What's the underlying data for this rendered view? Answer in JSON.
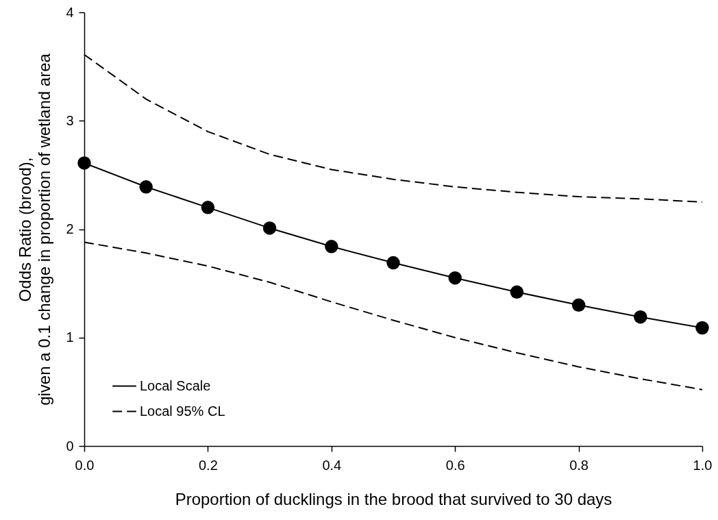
{
  "chart_data": {
    "type": "line",
    "xlabel": "Proportion of ducklings in the brood that survived to 30 days",
    "ylabel": "Odds Ratio (brood),\ngiven a 0.1 change in proportion of wetland area",
    "x": [
      0.0,
      0.1,
      0.2,
      0.3,
      0.4,
      0.5,
      0.6,
      0.7,
      0.8,
      0.9,
      1.0
    ],
    "series": [
      {
        "name": "Local Scale",
        "color": "#000000",
        "marker": "circle",
        "line_style": "solid",
        "values": [
          2.61,
          2.39,
          2.2,
          2.01,
          1.84,
          1.69,
          1.55,
          1.42,
          1.3,
          1.19,
          1.09
        ]
      },
      {
        "name": "Local 95% CL",
        "color": "#000000",
        "marker": "none",
        "line_style": "dashed",
        "values": [
          3.61,
          3.2,
          2.9,
          2.69,
          2.55,
          2.46,
          2.39,
          2.34,
          2.3,
          2.28,
          2.25
        ]
      },
      {
        "color": "#000000",
        "marker": "none",
        "line_style": "dashed",
        "values": [
          1.88,
          1.78,
          1.66,
          1.51,
          1.33,
          1.16,
          1.0,
          0.86,
          0.73,
          0.62,
          0.52
        ]
      }
    ],
    "xlim": [
      0,
      1
    ],
    "xticks": [
      {
        "value": 0,
        "label": "0.0"
      },
      {
        "value": 0.2,
        "label": "0.2"
      },
      {
        "value": 0.4,
        "label": "0.4"
      },
      {
        "value": 0.6,
        "label": "0.6"
      },
      {
        "value": 0.8,
        "label": "0.8"
      },
      {
        "value": 1,
        "label": "1.0"
      }
    ],
    "ylim": [
      0,
      4
    ],
    "yticks": [
      0,
      1,
      2,
      3,
      4
    ],
    "grid": false,
    "legend": "bottom left"
  }
}
